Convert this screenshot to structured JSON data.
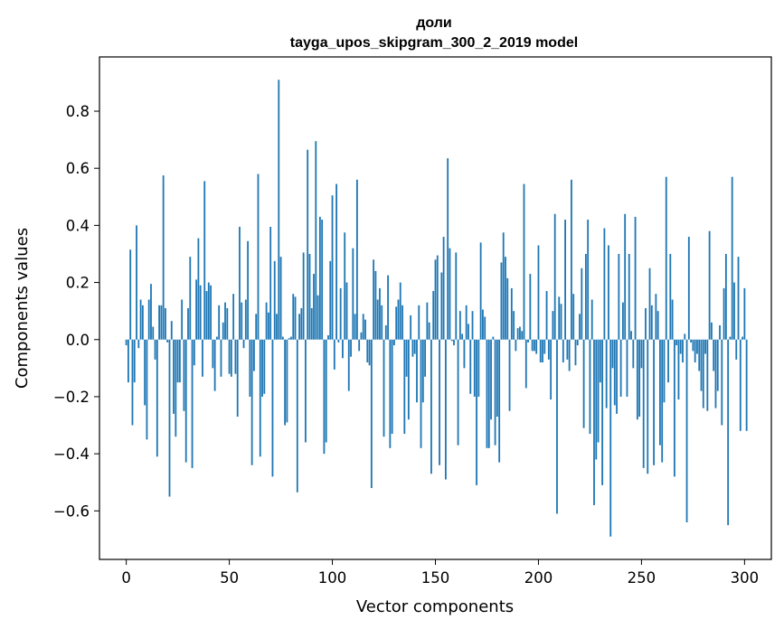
{
  "chart_data": {
    "type": "bar",
    "title": "доли",
    "subtitle": "tayga_upos_skipgram_300_2_2019 model",
    "xlabel": "Vector components",
    "ylabel": "Components values",
    "xlim": [
      -13,
      313
    ],
    "ylim": [
      -0.77,
      0.99
    ],
    "xticks": [
      0,
      50,
      100,
      150,
      200,
      250,
      300
    ],
    "xtick_labels": [
      "0",
      "50",
      "100",
      "150",
      "200",
      "250",
      "300"
    ],
    "yticks": [
      -0.6,
      -0.4,
      -0.2,
      0.0,
      0.2,
      0.4,
      0.6,
      0.8
    ],
    "ytick_labels": [
      "−0.6",
      "−0.4",
      "−0.2",
      "0.0",
      "0.2",
      "0.4",
      "0.6",
      "0.8"
    ],
    "bar_color": "#1f77b4",
    "grid": false,
    "values": [
      -0.02,
      -0.15,
      0.315,
      -0.3,
      -0.15,
      0.4,
      -0.03,
      0.14,
      0.12,
      -0.23,
      -0.35,
      0.14,
      0.195,
      0.045,
      -0.07,
      -0.41,
      0.12,
      0.12,
      0.575,
      0.11,
      -0.01,
      -0.55,
      0.065,
      -0.26,
      -0.34,
      -0.15,
      -0.15,
      0.14,
      -0.25,
      -0.43,
      0.11,
      0.29,
      -0.45,
      -0.09,
      0.21,
      0.355,
      0.19,
      -0.13,
      0.555,
      0.17,
      0.2,
      0.19,
      -0.1,
      -0.18,
      0.01,
      0.12,
      -0.13,
      0.06,
      0.13,
      0.11,
      -0.12,
      -0.13,
      0.16,
      -0.12,
      -0.27,
      0.395,
      0.13,
      -0.03,
      0.14,
      0.345,
      -0.2,
      -0.44,
      -0.11,
      0.09,
      0.58,
      -0.41,
      -0.2,
      -0.19,
      0.13,
      0.095,
      0.395,
      -0.48,
      0.275,
      0.09,
      0.91,
      0.29,
      0.01,
      -0.3,
      -0.29,
      0.005,
      0.01,
      0.16,
      0.15,
      -0.535,
      0.09,
      0.11,
      0.305,
      -0.36,
      0.665,
      0.3,
      0.11,
      0.23,
      0.695,
      0.155,
      0.43,
      0.42,
      -0.4,
      -0.36,
      0.015,
      0.275,
      0.505,
      -0.105,
      0.545,
      -0.01,
      0.18,
      -0.065,
      0.375,
      0.2,
      -0.18,
      -0.06,
      0.32,
      0.09,
      0.56,
      -0.04,
      0.025,
      0.09,
      0.07,
      -0.08,
      -0.09,
      -0.52,
      0.28,
      0.24,
      0.14,
      0.18,
      0.12,
      -0.34,
      0.05,
      0.225,
      -0.38,
      -0.33,
      -0.02,
      0.115,
      0.14,
      0.2,
      0.12,
      -0.33,
      -0.13,
      -0.28,
      0.085,
      -0.06,
      -0.05,
      -0.22,
      0.12,
      -0.38,
      -0.22,
      -0.13,
      0.13,
      0.06,
      -0.47,
      0.17,
      0.28,
      0.295,
      -0.44,
      0.235,
      0.36,
      -0.49,
      0.635,
      0.32,
      -0.005,
      -0.02,
      0.305,
      -0.37,
      0.1,
      0.02,
      -0.1,
      0.12,
      0.055,
      -0.19,
      0.1,
      -0.2,
      -0.51,
      -0.2,
      0.34,
      0.105,
      0.08,
      -0.38,
      -0.38,
      -0.28,
      0.01,
      -0.37,
      -0.27,
      -0.43,
      0.27,
      0.375,
      0.29,
      0.215,
      -0.25,
      0.18,
      0.1,
      -0.04,
      0.04,
      0.045,
      0.03,
      0.545,
      -0.17,
      -0.01,
      0.23,
      -0.04,
      -0.04,
      -0.05,
      0.33,
      -0.08,
      -0.08,
      -0.05,
      0.17,
      -0.07,
      -0.21,
      0.1,
      0.44,
      -0.61,
      0.15,
      0.125,
      -0.08,
      0.42,
      -0.07,
      -0.11,
      0.56,
      0.16,
      -0.09,
      -0.02,
      0.09,
      0.25,
      -0.31,
      0.3,
      0.42,
      -0.33,
      0.14,
      -0.58,
      -0.42,
      -0.36,
      -0.15,
      -0.51,
      0.39,
      -0.24,
      0.33,
      -0.69,
      -0.1,
      -0.23,
      -0.26,
      0.3,
      -0.2,
      0.13,
      0.44,
      -0.2,
      0.3,
      0.03,
      -0.1,
      0.43,
      -0.28,
      -0.27,
      -0.1,
      -0.45,
      0.11,
      -0.47,
      0.25,
      0.12,
      -0.44,
      0.16,
      0.1,
      -0.37,
      -0.43,
      -0.22,
      0.57,
      -0.15,
      0.3,
      0.14,
      -0.48,
      -0.02,
      -0.21,
      -0.05,
      -0.08,
      0.02,
      -0.64,
      0.36,
      -0.01,
      -0.04,
      -0.08,
      -0.05,
      -0.11,
      -0.18,
      -0.24,
      -0.05,
      -0.25,
      0.38,
      0.06,
      -0.11,
      -0.24,
      -0.18,
      0.05,
      -0.3,
      0.18,
      0.3,
      -0.65,
      0.01,
      0.57,
      0.2,
      -0.07,
      0.29,
      -0.32,
      0.01,
      0.18,
      -0.32
    ]
  }
}
